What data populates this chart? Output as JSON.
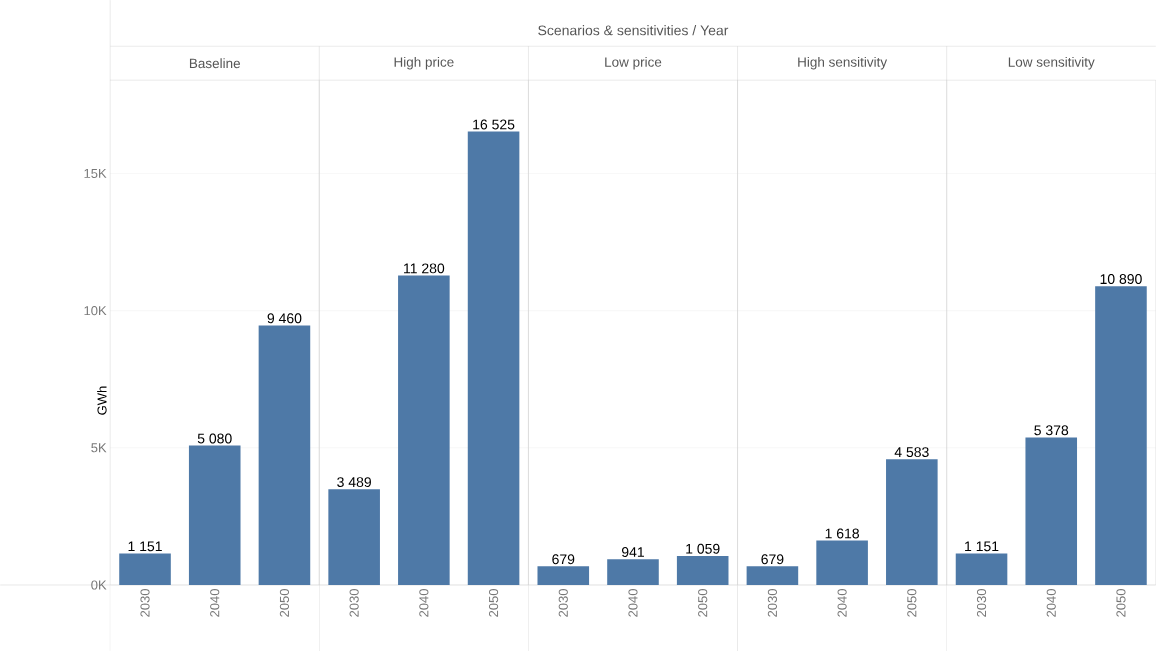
{
  "chart_data": [
    {
      "type": "bar",
      "title": "Baseline",
      "ylabel": "GWh",
      "annotations": [
        "Scenarios & sensitivities / Year"
      ],
      "categories": [
        "2030",
        "2040",
        "2050"
      ],
      "values": [
        1151,
        5080,
        9460
      ],
      "value_labels": [
        "1 151",
        "5 080",
        "9 460"
      ],
      "color": "#4e79a7",
      "ylim": [
        0,
        18400
      ],
      "yticks": [
        {
          "value": 0,
          "label": "0K"
        },
        {
          "value": 5000,
          "label": "5K"
        },
        {
          "value": 10000,
          "label": "10K"
        },
        {
          "value": 15000,
          "label": "15K"
        }
      ],
      "grid": "y"
    },
    {
      "type": "bar",
      "title": "High price",
      "categories": [
        "2030",
        "2040",
        "2050"
      ],
      "values": [
        3489,
        11280,
        16525
      ],
      "value_labels": [
        "3 489",
        "11 280",
        "16 525"
      ],
      "color": "#4e79a7",
      "ylim": [
        0,
        18400
      ],
      "yticks": [
        0,
        5000,
        10000,
        15000
      ],
      "grid": "y",
      "tick_labels": "x"
    },
    {
      "type": "bar",
      "title": "Low price",
      "categories": [
        "2030",
        "2040",
        "2050"
      ],
      "values": [
        679,
        941,
        1059
      ],
      "value_labels": [
        "679",
        "941",
        "1 059"
      ],
      "color": "#4e79a7",
      "ylim": [
        0,
        18400
      ],
      "yticks": [
        0,
        5000,
        10000,
        15000
      ],
      "grid": "y",
      "tick_labels": "x"
    },
    {
      "type": "bar",
      "title": "High sensitivity",
      "categories": [
        "2030",
        "2040",
        "2050"
      ],
      "values": [
        679,
        1618,
        4583
      ],
      "value_labels": [
        "679",
        "1 618",
        "4 583"
      ],
      "color": "#4e79a7",
      "ylim": [
        0,
        18400
      ],
      "yticks": [
        0,
        5000,
        10000,
        15000
      ],
      "grid": "y",
      "tick_labels": "x"
    },
    {
      "type": "bar",
      "title": "Low sensitivity",
      "categories": [
        "2030",
        "2040",
        "2050"
      ],
      "values": [
        1151,
        5378,
        10890
      ],
      "value_labels": [
        "1 151",
        "5 378",
        "10 890"
      ],
      "color": "#4e79a7",
      "ylim": [
        0,
        18400
      ],
      "yticks": [
        0,
        5000,
        10000,
        15000
      ],
      "grid": "y",
      "tick_labels": "x"
    }
  ]
}
